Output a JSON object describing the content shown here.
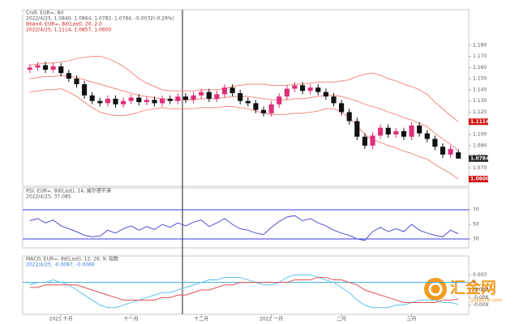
{
  "chart_data": [
    {
      "type": "candlestick",
      "title": "Cndl, EUR=, 8d",
      "subtitle": "2022/4/25, 1.0840, 1.0864, 1.0782, 1.0784, -0.0032(-0.29%)",
      "indicator": "Bband, EUR=, 8d(Last), 20, 2.0",
      "indicator_values": "2022/4/25, 1.1114, 1.0857, 1.0600",
      "categories": [
        null,
        null,
        null,
        null,
        "2021 十月",
        null,
        null,
        null,
        null,
        null,
        null,
        null,
        null,
        "十一月",
        null,
        null,
        null,
        null,
        null,
        null,
        null,
        null,
        "十二月",
        null,
        null,
        null,
        null,
        null,
        null,
        null,
        null,
        "2022 一月",
        null,
        null,
        null,
        null,
        null,
        null,
        null,
        null,
        "二月",
        null,
        null,
        null,
        null,
        null,
        null,
        null,
        null,
        "三月",
        null,
        null,
        null,
        null,
        null,
        null
      ],
      "open": [
        1.158,
        1.16,
        1.162,
        1.158,
        1.161,
        1.155,
        1.15,
        1.145,
        1.135,
        1.13,
        1.128,
        1.132,
        1.127,
        1.13,
        1.133,
        1.129,
        1.131,
        1.128,
        1.132,
        1.13,
        1.134,
        1.131,
        1.135,
        1.138,
        1.132,
        1.136,
        1.142,
        1.137,
        1.13,
        1.128,
        1.122,
        1.119,
        1.127,
        1.134,
        1.141,
        1.144,
        1.139,
        1.142,
        1.138,
        1.134,
        1.128,
        1.12,
        1.112,
        1.098,
        1.09,
        1.099,
        1.106,
        1.1,
        1.103,
        1.098,
        1.108,
        1.101,
        1.096,
        1.089,
        1.082,
        1.084
      ],
      "high": [
        1.163,
        1.165,
        1.165,
        1.164,
        1.164,
        1.158,
        1.153,
        1.148,
        1.138,
        1.133,
        1.135,
        1.135,
        1.133,
        1.136,
        1.136,
        1.134,
        1.134,
        1.135,
        1.135,
        1.137,
        1.137,
        1.138,
        1.141,
        1.141,
        1.139,
        1.145,
        1.145,
        1.14,
        1.133,
        1.131,
        1.125,
        1.13,
        1.137,
        1.144,
        1.147,
        1.147,
        1.145,
        1.145,
        1.141,
        1.137,
        1.131,
        1.123,
        1.115,
        1.101,
        1.102,
        1.109,
        1.109,
        1.106,
        1.106,
        1.111,
        1.111,
        1.104,
        1.099,
        1.092,
        1.09,
        1.0864
      ],
      "low": [
        1.155,
        1.157,
        1.155,
        1.155,
        1.152,
        1.147,
        1.142,
        1.132,
        1.127,
        1.125,
        1.125,
        1.124,
        1.124,
        1.127,
        1.126,
        1.126,
        1.125,
        1.125,
        1.127,
        1.127,
        1.128,
        1.128,
        1.132,
        1.129,
        1.129,
        1.133,
        1.134,
        1.127,
        1.125,
        1.119,
        1.116,
        1.116,
        1.124,
        1.131,
        1.138,
        1.136,
        1.136,
        1.135,
        1.131,
        1.125,
        1.117,
        1.109,
        1.095,
        1.087,
        1.087,
        1.096,
        1.097,
        1.097,
        1.095,
        1.095,
        1.098,
        1.093,
        1.086,
        1.079,
        1.079,
        1.0782
      ],
      "close": [
        1.16,
        1.162,
        1.158,
        1.161,
        1.155,
        1.15,
        1.145,
        1.135,
        1.13,
        1.128,
        1.132,
        1.127,
        1.13,
        1.133,
        1.129,
        1.131,
        1.128,
        1.132,
        1.13,
        1.134,
        1.131,
        1.135,
        1.138,
        1.132,
        1.136,
        1.142,
        1.137,
        1.13,
        1.128,
        1.122,
        1.119,
        1.127,
        1.134,
        1.141,
        1.144,
        1.139,
        1.142,
        1.138,
        1.134,
        1.128,
        1.12,
        1.112,
        1.098,
        1.09,
        1.099,
        1.106,
        1.1,
        1.103,
        1.098,
        1.108,
        1.101,
        1.096,
        1.089,
        1.082,
        1.087,
        1.0784
      ],
      "up_color": "#e0307a",
      "down_color": "#111111",
      "series": [
        {
          "color": "#f08a80",
          "values": [
            1.162,
            1.163,
            1.164,
            1.164,
            1.165,
            1.166,
            1.168,
            1.169,
            1.17,
            1.17,
            1.168,
            1.165,
            1.161,
            1.156,
            1.15,
            1.146,
            1.143,
            1.14,
            1.139,
            1.139,
            1.139,
            1.139,
            1.14,
            1.14,
            1.14,
            1.141,
            1.143,
            1.144,
            1.145,
            1.145,
            1.145,
            1.144,
            1.144,
            1.144,
            1.145,
            1.145,
            1.146,
            1.147,
            1.147,
            1.147,
            1.148,
            1.149,
            1.152,
            1.154,
            1.155,
            1.153,
            1.15,
            1.148,
            1.145,
            1.143,
            1.14,
            1.136,
            1.129,
            1.123,
            1.117,
            1.1114
          ]
        },
        {
          "color": "#f08a80",
          "values": [
            1.15,
            1.151,
            1.152,
            1.152,
            1.153,
            1.152,
            1.151,
            1.149,
            1.147,
            1.145,
            1.143,
            1.141,
            1.139,
            1.137,
            1.135,
            1.134,
            1.133,
            1.132,
            1.131,
            1.131,
            1.131,
            1.131,
            1.132,
            1.132,
            1.132,
            1.133,
            1.134,
            1.134,
            1.134,
            1.133,
            1.132,
            1.131,
            1.131,
            1.131,
            1.132,
            1.132,
            1.133,
            1.134,
            1.135,
            1.135,
            1.134,
            1.132,
            1.13,
            1.127,
            1.125,
            1.123,
            1.12,
            1.118,
            1.115,
            1.113,
            1.11,
            1.107,
            1.101,
            1.096,
            1.091,
            1.0857
          ]
        },
        {
          "color": "#f08a80",
          "values": [
            1.138,
            1.139,
            1.14,
            1.14,
            1.141,
            1.138,
            1.134,
            1.129,
            1.124,
            1.12,
            1.118,
            1.117,
            1.117,
            1.118,
            1.12,
            1.122,
            1.123,
            1.124,
            1.123,
            1.123,
            1.123,
            1.123,
            1.124,
            1.124,
            1.124,
            1.125,
            1.125,
            1.124,
            1.123,
            1.121,
            1.119,
            1.118,
            1.118,
            1.118,
            1.119,
            1.119,
            1.12,
            1.121,
            1.123,
            1.123,
            1.12,
            1.115,
            1.108,
            1.1,
            1.095,
            1.093,
            1.09,
            1.088,
            1.085,
            1.083,
            1.08,
            1.078,
            1.073,
            1.069,
            1.065,
            1.06
          ]
        }
      ],
      "ylim": [
        1.055,
        1.19
      ],
      "yticks": [
        {
          "value": 1.06,
          "label": "1.060"
        },
        {
          "value": 1.07,
          "label": "1.070"
        },
        {
          "value": 1.08,
          "label": "1.080"
        },
        {
          "value": 1.09,
          "label": "1.090"
        },
        {
          "value": 1.1,
          "label": "1.100"
        },
        {
          "value": 1.11,
          "label": "1.110"
        },
        {
          "value": 1.12,
          "label": "1.120"
        },
        {
          "value": 1.13,
          "label": "1.130"
        },
        {
          "value": 1.14,
          "label": "1.140"
        },
        {
          "value": 1.15,
          "label": "1.150"
        },
        {
          "value": 1.16,
          "label": "1.160"
        },
        {
          "value": 1.17,
          "label": "1.170"
        },
        {
          "value": 1.18,
          "label": "1.180"
        }
      ],
      "price_tags": [
        {
          "value": 1.1114,
          "label": "1.1114",
          "color": "#d01010"
        },
        {
          "value": 1.0784,
          "label": "1.0784",
          "color": "#222222"
        },
        {
          "value": 1.06,
          "label": "1.0600",
          "color": "#d01010"
        }
      ]
    },
    {
      "type": "line",
      "title": "RSI, EUR=, 8d(Last), 14, 威尔德平滑",
      "subtitle": "2022/4/25, 37.085",
      "series": [
        {
          "color": "#5050d0",
          "values": [
            55,
            58,
            52,
            56,
            48,
            44,
            40,
            35,
            33,
            34,
            42,
            38,
            44,
            48,
            42,
            47,
            43,
            50,
            46,
            52,
            48,
            53,
            56,
            47,
            52,
            58,
            50,
            44,
            42,
            38,
            36,
            46,
            54,
            60,
            62,
            55,
            58,
            52,
            48,
            42,
            38,
            35,
            30,
            28,
            40,
            46,
            40,
            44,
            40,
            50,
            42,
            38,
            35,
            33,
            42,
            37.085
          ]
        }
      ],
      "hlines": [
        30,
        70
      ],
      "hline_color": "#3a3ae0",
      "ylim": [
        20,
        80
      ],
      "yticks": [
        30,
        50,
        70
      ]
    },
    {
      "type": "line",
      "title": "MACD, EUR=, 8d(Last), 12, 26, 9, 指数",
      "subtitle": "2022/4/25, -0.0087, -0.0066",
      "series": [
        {
          "color": "#5bc0f0",
          "values": [
            -0.001,
            0,
            0,
            0.001,
            0,
            -0.001,
            -0.003,
            -0.005,
            -0.007,
            -0.009,
            -0.01,
            -0.01,
            -0.009,
            -0.008,
            -0.007,
            -0.006,
            -0.005,
            -0.004,
            -0.004,
            -0.003,
            -0.002,
            -0.001,
            0,
            0.001,
            0.001,
            0.002,
            0.002,
            0.002,
            0.001,
            0,
            -0.001,
            -0.001,
            0,
            0.002,
            0.003,
            0.003,
            0.003,
            0.002,
            0.001,
            0,
            -0.002,
            -0.004,
            -0.007,
            -0.009,
            -0.01,
            -0.01,
            -0.01,
            -0.009,
            -0.009,
            -0.008,
            -0.007,
            -0.007,
            -0.007,
            -0.008,
            -0.008,
            -0.0087
          ]
        },
        {
          "color": "#e05050",
          "values": [
            -0.002,
            -0.002,
            -0.001,
            -0.001,
            -0.001,
            -0.001,
            -0.001,
            -0.002,
            -0.003,
            -0.004,
            -0.005,
            -0.006,
            -0.007,
            -0.007,
            -0.007,
            -0.007,
            -0.007,
            -0.006,
            -0.006,
            -0.005,
            -0.005,
            -0.004,
            -0.003,
            -0.003,
            -0.002,
            -0.001,
            -0.001,
            0,
            0,
            0,
            0,
            0,
            0,
            0,
            0.001,
            0.001,
            0.001,
            0.002,
            0.002,
            0.001,
            0.001,
            0,
            -0.001,
            -0.003,
            -0.004,
            -0.005,
            -0.006,
            -0.007,
            -0.008,
            -0.008,
            -0.008,
            -0.008,
            -0.008,
            -0.007,
            -0.007,
            -0.0066
          ]
        }
      ],
      "hlines": [
        0
      ],
      "hline_color": "#3aaae0",
      "ylim": [
        -0.012,
        0.006
      ],
      "yticks": [
        -0.009,
        -0.006,
        -0.003,
        0,
        0.003
      ]
    }
  ],
  "watermark": {
    "name": "汇金网",
    "url": "gold678.com"
  }
}
